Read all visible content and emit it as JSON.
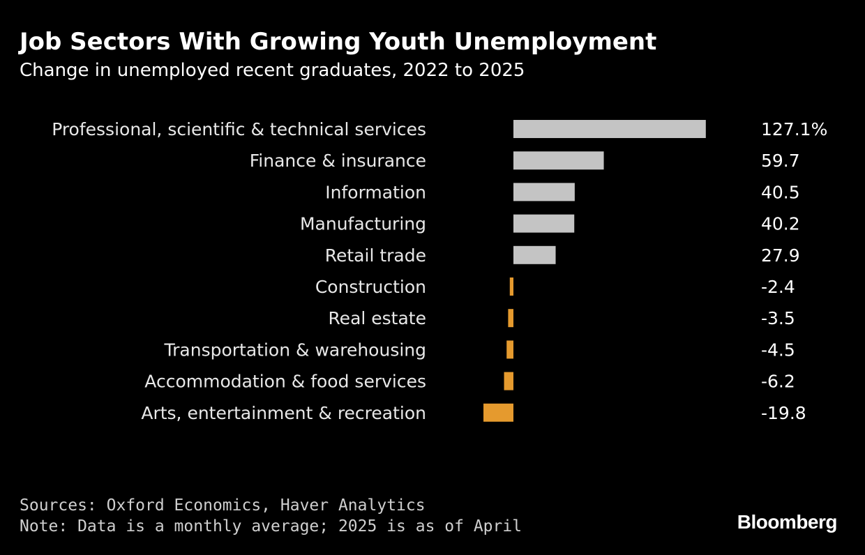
{
  "chart_data": {
    "type": "bar",
    "orientation": "horizontal",
    "title": "Job Sectors With Growing Youth Unemployment",
    "subtitle": "Change in unemployed recent graduates, 2022 to 2025",
    "categories": [
      "Professional, scientific & technical services",
      "Finance & insurance",
      "Information",
      "Manufacturing",
      "Retail trade",
      "Construction",
      "Real estate",
      "Transportation & warehousing",
      "Accommodation & food services",
      "Arts, entertainment & recreation"
    ],
    "values": [
      127.1,
      59.7,
      40.5,
      40.2,
      27.9,
      -2.4,
      -3.5,
      -4.5,
      -6.2,
      -19.8
    ],
    "value_labels": [
      "127.1%",
      "59.7",
      "40.5",
      "40.2",
      "27.9",
      "-2.4",
      "-3.5",
      "-4.5",
      "-6.2",
      "-19.8"
    ],
    "unit": "%",
    "xlim": [
      -19.8,
      127.1
    ],
    "colors": {
      "positive": "#c4c4c4",
      "negative": "#e59a2e"
    },
    "grid": false,
    "legend": "none"
  },
  "footer": {
    "sources": "Sources: Oxford Economics, Haver Analytics",
    "note": "Note: Data is a monthly average; 2025 is as of April"
  },
  "brand": "Bloomberg"
}
